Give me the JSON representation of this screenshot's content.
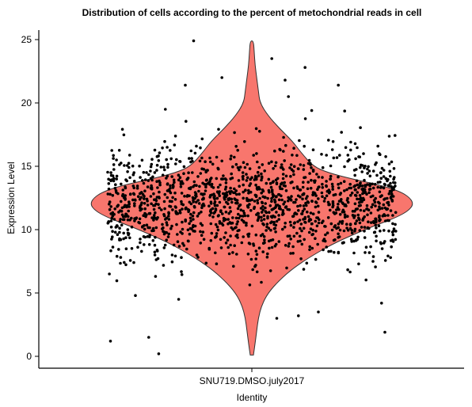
{
  "chart_data": {
    "type": "violin",
    "title": "Distribution of cells according to the percent of metochondrial reads in cell",
    "xlabel": "Identity",
    "ylabel": "Expression Level",
    "categories": [
      "SNU719.DMSO.july2017"
    ],
    "ylim": [
      -1,
      26
    ],
    "yticks": [
      0,
      5,
      10,
      15,
      20,
      25
    ],
    "grid": false,
    "legend": "none",
    "violin_fill": "#F8766D",
    "violin_stroke": "#333333",
    "point_color": "#000000",
    "violin_profile": [
      [
        0.1,
        0.01
      ],
      [
        1.0,
        0.02
      ],
      [
        2.0,
        0.03
      ],
      [
        3.0,
        0.04
      ],
      [
        4.0,
        0.06
      ],
      [
        5.0,
        0.1
      ],
      [
        6.0,
        0.17
      ],
      [
        7.0,
        0.26
      ],
      [
        8.0,
        0.38
      ],
      [
        9.0,
        0.52
      ],
      [
        10.0,
        0.7
      ],
      [
        10.5,
        0.8
      ],
      [
        11.0,
        0.9
      ],
      [
        11.5,
        0.97
      ],
      [
        12.0,
        1.0
      ],
      [
        12.5,
        0.98
      ],
      [
        13.0,
        0.92
      ],
      [
        13.5,
        0.8
      ],
      [
        14.0,
        0.62
      ],
      [
        14.5,
        0.47
      ],
      [
        15.0,
        0.38
      ],
      [
        16.0,
        0.31
      ],
      [
        17.0,
        0.25
      ],
      [
        18.0,
        0.17
      ],
      [
        19.0,
        0.1
      ],
      [
        20.0,
        0.05
      ],
      [
        21.0,
        0.04
      ],
      [
        22.0,
        0.03
      ],
      [
        23.0,
        0.02
      ],
      [
        24.0,
        0.015
      ],
      [
        24.9,
        0.01
      ]
    ],
    "series": [
      {
        "category": "SNU719.DMSO.july2017",
        "n_points": 1500,
        "median": 12.0,
        "outliers": [
          [
            -0.35,
            24.9
          ],
          [
            0.12,
            23.5
          ],
          [
            0.32,
            22.8
          ],
          [
            -0.18,
            22.0
          ],
          [
            0.2,
            21.8
          ],
          [
            -0.4,
            21.4
          ],
          [
            0.52,
            21.4
          ],
          [
            0.22,
            20.5
          ],
          [
            -0.52,
            19.5
          ],
          [
            0.36,
            19.4
          ],
          [
            -0.85,
            1.2
          ],
          [
            -0.62,
            1.5
          ],
          [
            -0.56,
            0.2
          ],
          [
            0.8,
            1.9
          ],
          [
            -0.7,
            4.8
          ],
          [
            0.4,
            3.5
          ],
          [
            0.78,
            4.2
          ],
          [
            0.28,
            3.2
          ],
          [
            -0.44,
            4.5
          ],
          [
            0.15,
            3.0
          ]
        ]
      }
    ]
  }
}
